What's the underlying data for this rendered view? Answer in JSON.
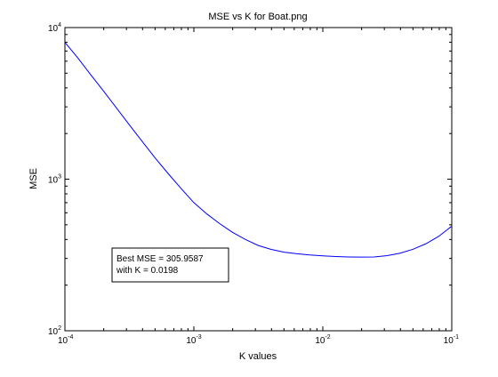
{
  "chart_data": {
    "type": "line",
    "title": "MSE vs K for Boat.png",
    "xlabel": "K values",
    "ylabel": "MSE",
    "x_scale": "log",
    "y_scale": "log",
    "xlim": [
      0.0001,
      0.1
    ],
    "ylim": [
      100,
      10000
    ],
    "grid": false,
    "x_ticks": [
      {
        "value": 0.0001,
        "base": "10",
        "exp": "-4"
      },
      {
        "value": 0.001,
        "base": "10",
        "exp": "-3"
      },
      {
        "value": 0.01,
        "base": "10",
        "exp": "-2"
      },
      {
        "value": 0.1,
        "base": "10",
        "exp": "-1"
      }
    ],
    "y_ticks": [
      {
        "value": 100,
        "base": "10",
        "exp": "2"
      },
      {
        "value": 1000,
        "base": "10",
        "exp": "3"
      },
      {
        "value": 10000,
        "base": "10",
        "exp": "4"
      }
    ],
    "series": [
      {
        "color": "#0000ff",
        "x": [
          0.0001,
          0.000126,
          0.000158,
          0.0002,
          0.000251,
          0.000316,
          0.000398,
          0.000501,
          0.000631,
          0.000794,
          0.001,
          0.00126,
          0.00158,
          0.002,
          0.00251,
          0.00316,
          0.00398,
          0.00501,
          0.00631,
          0.00794,
          0.01,
          0.0126,
          0.0158,
          0.0198,
          0.025,
          0.0316,
          0.0398,
          0.0501,
          0.0631,
          0.0794,
          0.1
        ],
        "y": [
          8000,
          6300,
          4900,
          3800,
          2950,
          2280,
          1770,
          1380,
          1090,
          870,
          700,
          590,
          510,
          445,
          400,
          365,
          344,
          330,
          322,
          316,
          312,
          309,
          307,
          306,
          307,
          313,
          325,
          345,
          375,
          420,
          490
        ]
      }
    ],
    "annotation": {
      "lines": [
        "Best MSE = 305.9587",
        "with K = 0.0198"
      ]
    }
  }
}
